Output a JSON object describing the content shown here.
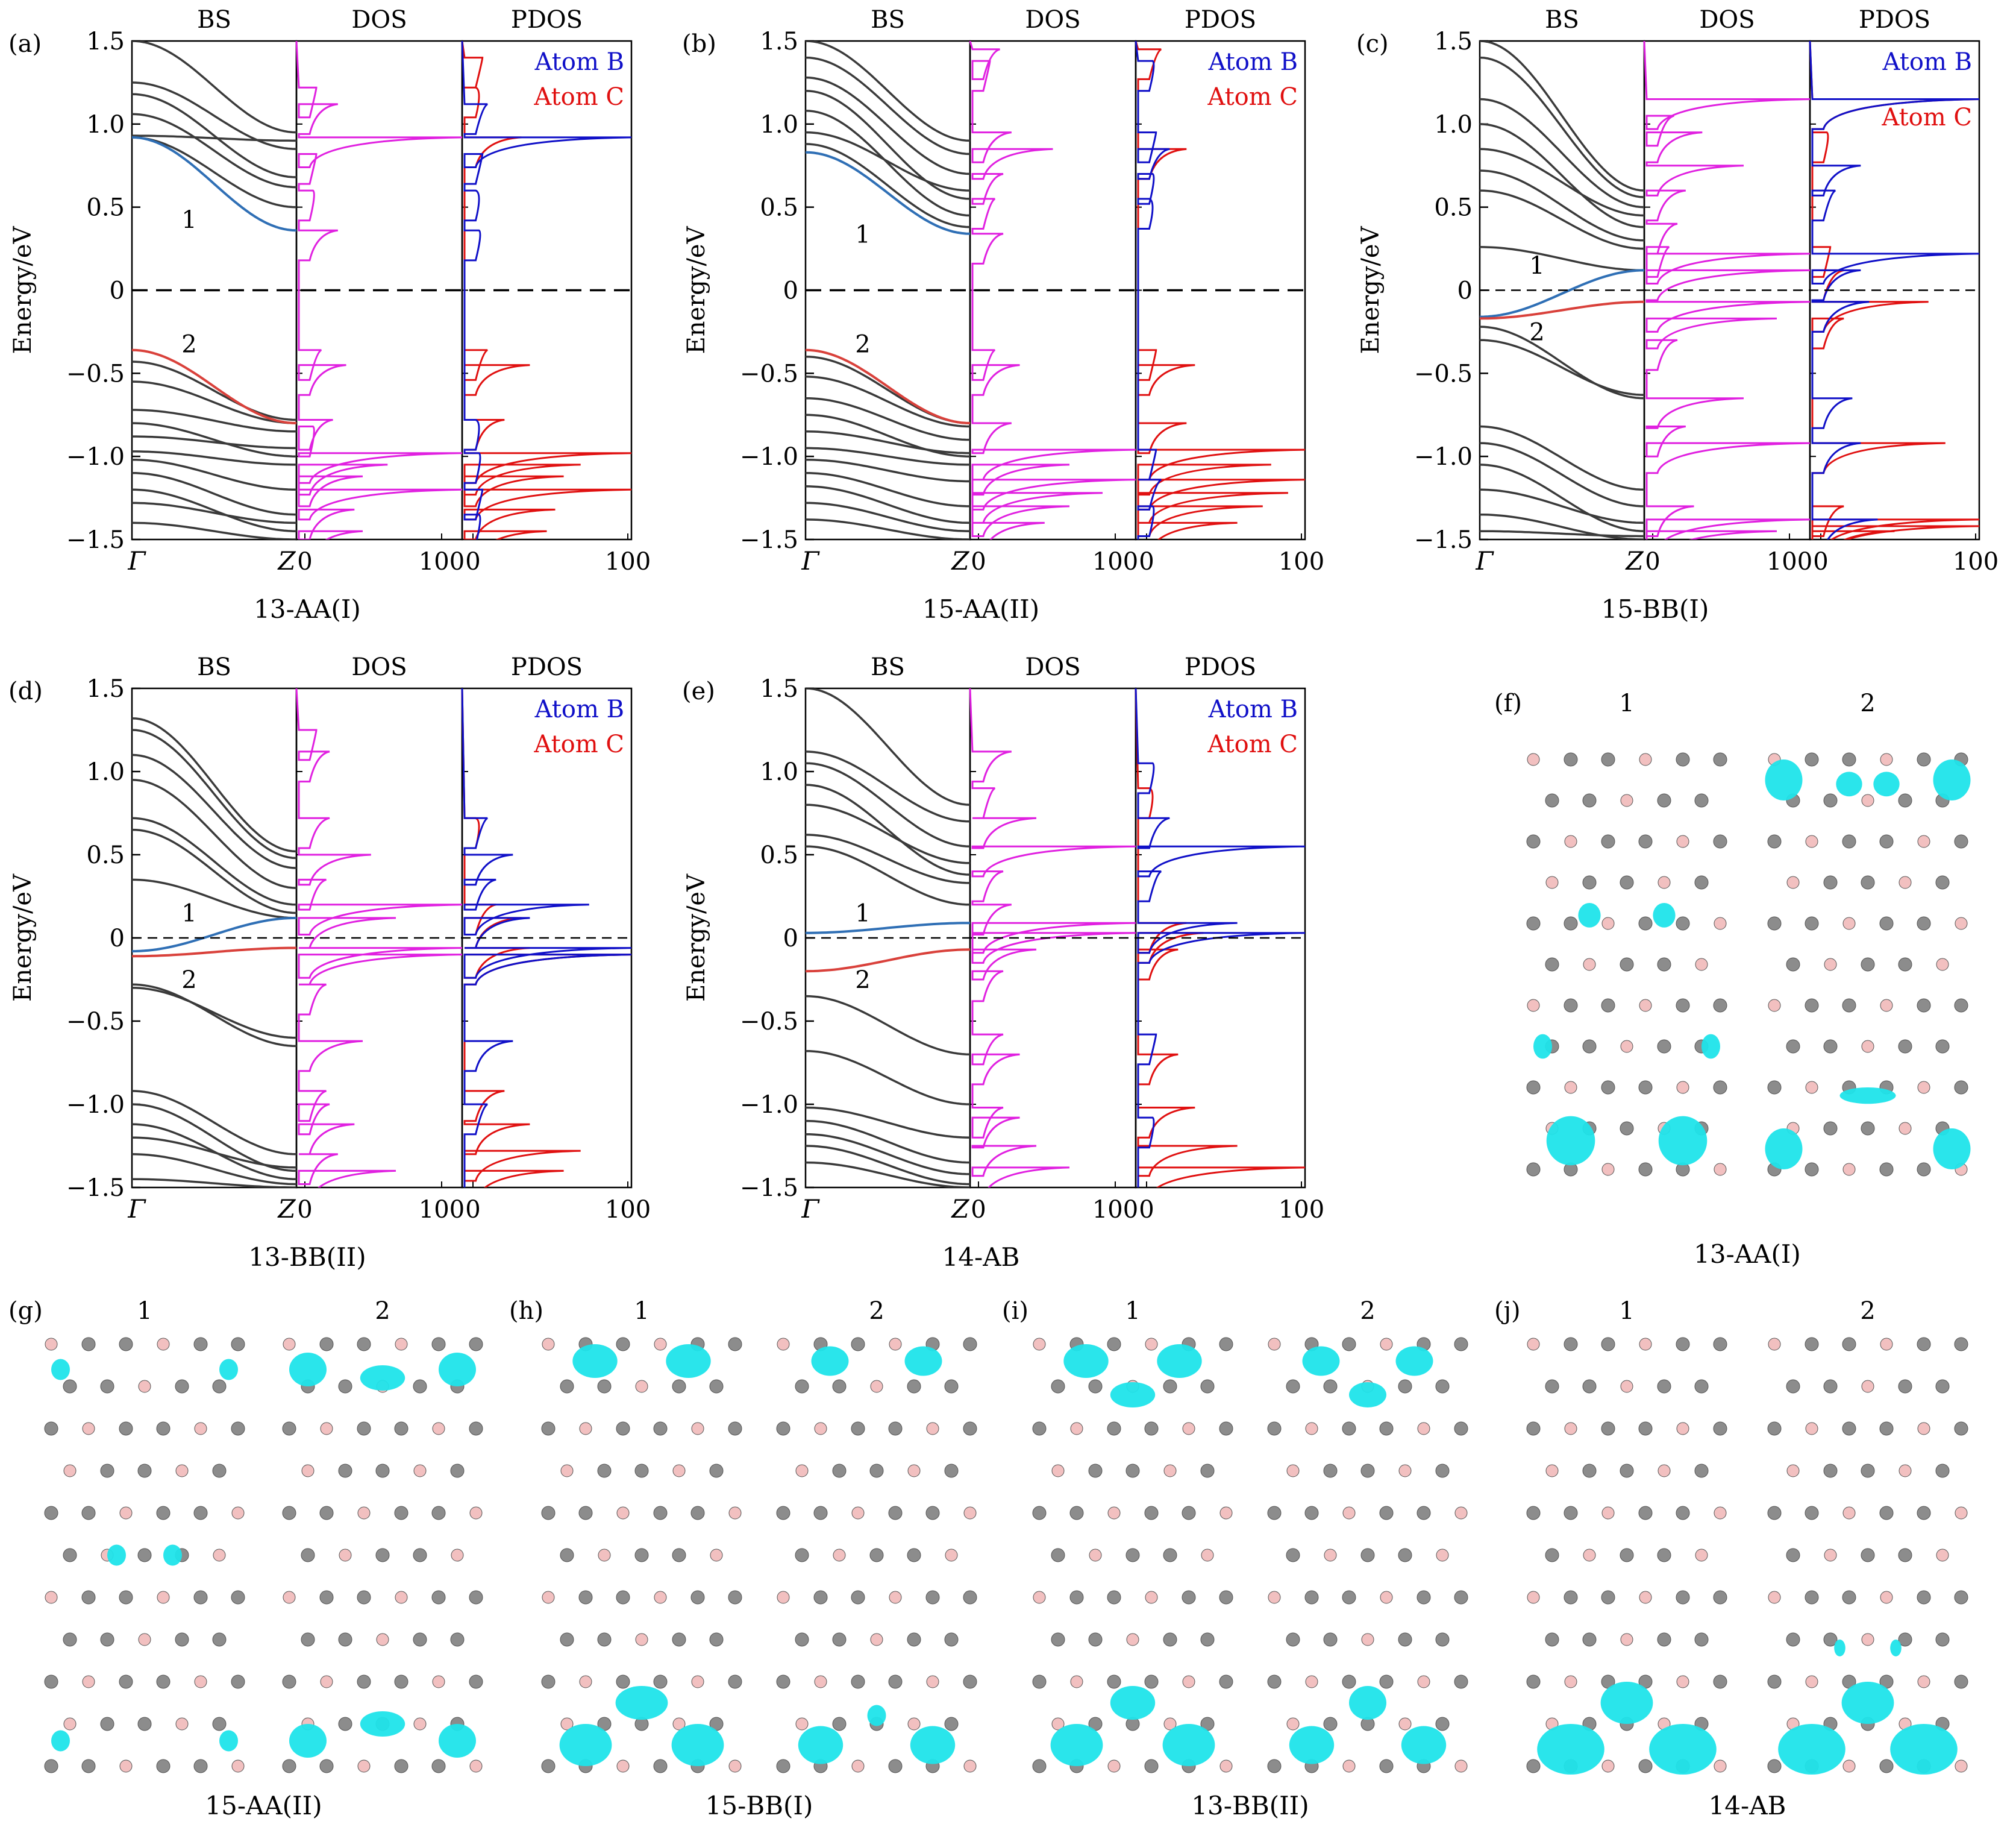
{
  "colors": {
    "band": "#3a3a3a",
    "band_1": "#2f6fb5",
    "band_2": "#d9413b",
    "dos": "#e020e0",
    "atom_b": "#1010c8",
    "atom_c": "#e01010",
    "isosurface": "#1fe4ea",
    "carbon": "#8c8c8c",
    "boron": "#f2c0c0"
  },
  "column_titles": [
    "BS",
    "DOS",
    "PDOS"
  ],
  "y_axis_label": "Energy/eV",
  "y_ticks": [
    "1.5",
    "1.0",
    "0.5",
    "0",
    "−0.5",
    "−1.0",
    "−1.5"
  ],
  "bs_x_ticks": [
    "Γ",
    "Z"
  ],
  "dos_x_ticks": [
    "0",
    "100"
  ],
  "legend": {
    "atom_b": "Atom B",
    "atom_c": "Atom C"
  },
  "band_labels": [
    "1",
    "2"
  ],
  "panels": [
    {
      "id": "(a)",
      "caption": "13-AA(I)"
    },
    {
      "id": "(b)",
      "caption": "15-AA(II)"
    },
    {
      "id": "(c)",
      "caption": "15-BB(I)"
    },
    {
      "id": "(d)",
      "caption": "13-BB(II)"
    },
    {
      "id": "(e)",
      "caption": "14-AB"
    }
  ],
  "structure_panels": [
    {
      "id": "(f)",
      "caption": "13-AA(I)"
    },
    {
      "id": "(g)",
      "caption": "15-AA(II)"
    },
    {
      "id": "(h)",
      "caption": "15-BB(I)"
    },
    {
      "id": "(i)",
      "caption": "13-BB(II)"
    },
    {
      "id": "(j)",
      "caption": "14-AB"
    }
  ],
  "chart_data": [
    {
      "panel": "(a)",
      "type": "line",
      "ylim": [
        -1.5,
        1.5
      ],
      "ylabel": "Energy/eV",
      "band1": {
        "top": 0.92,
        "bottom": 0.36
      },
      "band2": {
        "top": -0.36,
        "bottom": -0.8
      },
      "fermi_style": "dashed-heavy",
      "conduction_bands": [
        [
          1.5,
          0.95
        ],
        [
          1.25,
          0.85
        ],
        [
          1.18,
          0.68
        ],
        [
          1.06,
          0.62
        ],
        [
          0.93,
          0.9
        ],
        [
          0.92,
          0.5
        ]
      ],
      "valence_bands": [
        [
          -0.43,
          -0.78
        ],
        [
          -0.55,
          -0.8
        ],
        [
          -0.72,
          -0.85
        ],
        [
          -0.8,
          -1.0
        ],
        [
          -0.88,
          -0.95
        ],
        [
          -0.97,
          -1.05
        ],
        [
          -1.02,
          -1.2
        ],
        [
          -1.1,
          -1.35
        ],
        [
          -1.2,
          -1.45
        ],
        [
          -1.28,
          -1.4
        ],
        [
          -1.4,
          -1.5
        ]
      ],
      "dos_peaks": [
        [
          1.22,
          12
        ],
        [
          1.12,
          25
        ],
        [
          0.92,
          100
        ],
        [
          0.82,
          12
        ],
        [
          0.6,
          10
        ],
        [
          0.36,
          25
        ],
        [
          -0.36,
          15
        ],
        [
          -0.45,
          30
        ],
        [
          -0.78,
          22
        ],
        [
          -0.82,
          10
        ],
        [
          -0.98,
          100
        ],
        [
          -1.05,
          55
        ],
        [
          -1.12,
          40
        ],
        [
          -1.2,
          100
        ],
        [
          -1.32,
          35
        ],
        [
          -1.45,
          40
        ]
      ],
      "pdos_b_peaks": [
        [
          1.12,
          15
        ],
        [
          0.92,
          100
        ],
        [
          0.82,
          12
        ],
        [
          0.6,
          8
        ],
        [
          0.36,
          10
        ],
        [
          -0.78,
          8
        ],
        [
          -0.98,
          10
        ],
        [
          -1.2,
          12
        ],
        [
          -1.35,
          10
        ]
      ],
      "pdos_c_peaks": [
        [
          1.4,
          12
        ],
        [
          1.22,
          8
        ],
        [
          0.92,
          35
        ],
        [
          -0.36,
          15
        ],
        [
          -0.45,
          40
        ],
        [
          -0.78,
          25
        ],
        [
          -0.98,
          100
        ],
        [
          -1.05,
          70
        ],
        [
          -1.12,
          60
        ],
        [
          -1.2,
          100
        ],
        [
          -1.32,
          55
        ],
        [
          -1.45,
          50
        ]
      ]
    },
    {
      "panel": "(b)",
      "type": "line",
      "ylim": [
        -1.5,
        1.5
      ],
      "ylabel": "Energy/eV",
      "band1": {
        "top": 0.83,
        "bottom": 0.34
      },
      "band2": {
        "top": -0.36,
        "bottom": -0.8
      },
      "fermi_style": "dashed-heavy",
      "conduction_bands": [
        [
          1.5,
          0.9
        ],
        [
          1.4,
          0.82
        ],
        [
          1.28,
          0.7
        ],
        [
          1.2,
          0.55
        ],
        [
          1.08,
          0.45
        ],
        [
          0.95,
          0.6
        ],
        [
          0.88,
          0.38
        ]
      ],
      "valence_bands": [
        [
          -0.4,
          -0.8
        ],
        [
          -0.52,
          -0.82
        ],
        [
          -0.65,
          -0.9
        ],
        [
          -0.75,
          -1.0
        ],
        [
          -0.85,
          -0.98
        ],
        [
          -0.95,
          -1.05
        ],
        [
          -1.02,
          -1.15
        ],
        [
          -1.1,
          -1.3
        ],
        [
          -1.18,
          -1.4
        ],
        [
          -1.28,
          -1.45
        ],
        [
          -1.38,
          -1.5
        ]
      ],
      "dos_peaks": [
        [
          1.45,
          18
        ],
        [
          1.38,
          12
        ],
        [
          0.95,
          25
        ],
        [
          0.85,
          50
        ],
        [
          0.7,
          20
        ],
        [
          0.55,
          15
        ],
        [
          0.34,
          20
        ],
        [
          -0.36,
          15
        ],
        [
          -0.45,
          30
        ],
        [
          -0.8,
          25
        ],
        [
          -0.96,
          100
        ],
        [
          -1.05,
          60
        ],
        [
          -1.14,
          100
        ],
        [
          -1.22,
          80
        ],
        [
          -1.3,
          60
        ],
        [
          -1.4,
          45
        ]
      ],
      "pdos_b_peaks": [
        [
          1.38,
          10
        ],
        [
          0.95,
          12
        ],
        [
          0.85,
          20
        ],
        [
          0.7,
          10
        ],
        [
          0.55,
          8
        ],
        [
          -0.96,
          12
        ],
        [
          -1.14,
          15
        ],
        [
          -1.3,
          10
        ]
      ],
      "pdos_c_peaks": [
        [
          1.45,
          15
        ],
        [
          0.85,
          30
        ],
        [
          -0.36,
          12
        ],
        [
          -0.45,
          35
        ],
        [
          -0.8,
          30
        ],
        [
          -0.96,
          100
        ],
        [
          -1.05,
          80
        ],
        [
          -1.14,
          100
        ],
        [
          -1.22,
          90
        ],
        [
          -1.3,
          75
        ],
        [
          -1.4,
          60
        ]
      ]
    },
    {
      "panel": "(c)",
      "type": "line",
      "ylim": [
        -1.5,
        1.5
      ],
      "ylabel": "Energy/eV",
      "band1": {
        "top": -0.16,
        "bottom": 0.12
      },
      "band2": {
        "top": -0.17,
        "bottom": -0.07
      },
      "fermi_style": "dashed-light",
      "conduction_bands": [
        [
          1.5,
          0.6
        ],
        [
          1.4,
          0.56
        ],
        [
          1.15,
          0.5
        ],
        [
          1.0,
          0.38
        ],
        [
          0.85,
          0.45
        ],
        [
          0.72,
          0.3
        ],
        [
          0.6,
          0.25
        ],
        [
          0.26,
          0.12
        ]
      ],
      "valence_bands": [
        [
          -0.22,
          -0.65
        ],
        [
          -0.3,
          -0.63
        ],
        [
          -0.82,
          -1.2
        ],
        [
          -0.92,
          -1.3
        ],
        [
          -1.05,
          -1.45
        ],
        [
          -1.2,
          -1.4
        ],
        [
          -1.35,
          -1.5
        ],
        [
          -1.45,
          -1.48
        ]
      ],
      "dos_peaks": [
        [
          1.15,
          100
        ],
        [
          1.05,
          18
        ],
        [
          0.95,
          35
        ],
        [
          0.75,
          60
        ],
        [
          0.6,
          25
        ],
        [
          0.4,
          20
        ],
        [
          0.26,
          15
        ],
        [
          0.22,
          100
        ],
        [
          0.12,
          100
        ],
        [
          -0.07,
          100
        ],
        [
          -0.17,
          80
        ],
        [
          -0.3,
          20
        ],
        [
          -0.65,
          60
        ],
        [
          -0.82,
          25
        ],
        [
          -0.92,
          100
        ],
        [
          -1.3,
          30
        ],
        [
          -1.38,
          100
        ],
        [
          -1.45,
          80
        ]
      ],
      "pdos_b_peaks": [
        [
          1.15,
          100
        ],
        [
          0.75,
          30
        ],
        [
          0.6,
          15
        ],
        [
          0.22,
          100
        ],
        [
          0.12,
          30
        ],
        [
          -0.07,
          35
        ],
        [
          -0.65,
          25
        ],
        [
          -0.92,
          30
        ],
        [
          -1.38,
          40
        ]
      ],
      "pdos_c_peaks": [
        [
          1.15,
          100
        ],
        [
          0.95,
          10
        ],
        [
          0.26,
          12
        ],
        [
          0.12,
          20
        ],
        [
          -0.07,
          70
        ],
        [
          -0.17,
          20
        ],
        [
          -0.92,
          80
        ],
        [
          -1.3,
          20
        ],
        [
          -1.38,
          100
        ],
        [
          -1.42,
          100
        ],
        [
          -1.45,
          50
        ]
      ]
    },
    {
      "panel": "(d)",
      "type": "line",
      "ylim": [
        -1.5,
        1.5
      ],
      "ylabel": "Energy/eV",
      "band1": {
        "top": -0.08,
        "bottom": 0.12
      },
      "band2": {
        "top": -0.11,
        "bottom": -0.06
      },
      "fermi_style": "dashed-light",
      "conduction_bands": [
        [
          1.32,
          0.52
        ],
        [
          1.25,
          0.48
        ],
        [
          1.1,
          0.42
        ],
        [
          0.95,
          0.3
        ],
        [
          0.72,
          0.2
        ],
        [
          0.65,
          0.15
        ],
        [
          0.35,
          0.12
        ]
      ],
      "valence_bands": [
        [
          -0.28,
          -0.65
        ],
        [
          -0.3,
          -0.6
        ],
        [
          -0.92,
          -1.3
        ],
        [
          -1.0,
          -1.4
        ],
        [
          -1.12,
          -1.45
        ],
        [
          -1.2,
          -1.38
        ],
        [
          -1.3,
          -1.48
        ],
        [
          -1.45,
          -1.5
        ]
      ],
      "dos_peaks": [
        [
          1.25,
          12
        ],
        [
          1.12,
          20
        ],
        [
          0.72,
          20
        ],
        [
          0.5,
          45
        ],
        [
          0.35,
          18
        ],
        [
          0.2,
          100
        ],
        [
          0.12,
          60
        ],
        [
          -0.06,
          100
        ],
        [
          -0.1,
          100
        ],
        [
          -0.28,
          18
        ],
        [
          -0.62,
          40
        ],
        [
          -0.92,
          18
        ],
        [
          -1.0,
          20
        ],
        [
          -1.12,
          35
        ],
        [
          -1.3,
          25
        ],
        [
          -1.4,
          60
        ]
      ],
      "pdos_b_peaks": [
        [
          0.72,
          15
        ],
        [
          0.5,
          30
        ],
        [
          0.35,
          20
        ],
        [
          0.2,
          75
        ],
        [
          0.12,
          40
        ],
        [
          -0.06,
          100
        ],
        [
          -0.1,
          100
        ],
        [
          -0.62,
          30
        ],
        [
          -1.0,
          15
        ]
      ],
      "pdos_c_peaks": [
        [
          0.72,
          8
        ],
        [
          0.2,
          20
        ],
        [
          0.12,
          35
        ],
        [
          -0.06,
          40
        ],
        [
          -0.1,
          100
        ],
        [
          -0.92,
          25
        ],
        [
          -1.12,
          40
        ],
        [
          -1.28,
          70
        ],
        [
          -1.4,
          60
        ]
      ]
    },
    {
      "panel": "(e)",
      "type": "line",
      "ylim": [
        -1.5,
        1.5
      ],
      "ylabel": "Energy/eV",
      "band1": {
        "top": 0.03,
        "bottom": 0.09
      },
      "band2": {
        "top": -0.2,
        "bottom": -0.07
      },
      "fermi_style": "dashed-light",
      "conduction_bands": [
        [
          1.5,
          0.8
        ],
        [
          1.12,
          0.7
        ],
        [
          1.05,
          0.55
        ],
        [
          0.92,
          0.38
        ],
        [
          0.8,
          0.45
        ],
        [
          0.62,
          0.33
        ],
        [
          0.55,
          0.2
        ]
      ],
      "valence_bands": [
        [
          -0.35,
          -0.7
        ],
        [
          -0.68,
          -1.0
        ],
        [
          -1.02,
          -1.2
        ],
        [
          -1.1,
          -1.35
        ],
        [
          -1.18,
          -1.42
        ],
        [
          -1.25,
          -1.48
        ],
        [
          -1.35,
          -1.5
        ]
      ],
      "dos_peaks": [
        [
          1.12,
          25
        ],
        [
          0.9,
          15
        ],
        [
          0.72,
          40
        ],
        [
          0.55,
          100
        ],
        [
          0.4,
          20
        ],
        [
          0.2,
          25
        ],
        [
          0.09,
          100
        ],
        [
          0.03,
          100
        ],
        [
          -0.07,
          40
        ],
        [
          -0.2,
          20
        ],
        [
          -0.58,
          20
        ],
        [
          -0.7,
          30
        ],
        [
          -1.02,
          20
        ],
        [
          -1.08,
          30
        ],
        [
          -1.25,
          40
        ],
        [
          -1.38,
          60
        ]
      ],
      "pdos_b_peaks": [
        [
          1.05,
          10
        ],
        [
          0.72,
          20
        ],
        [
          0.55,
          100
        ],
        [
          0.4,
          15
        ],
        [
          0.09,
          60
        ],
        [
          0.03,
          100
        ],
        [
          -0.58,
          12
        ],
        [
          -1.08,
          10
        ]
      ],
      "pdos_c_peaks": [
        [
          0.9,
          8
        ],
        [
          0.09,
          30
        ],
        [
          0.03,
          40
        ],
        [
          -0.07,
          25
        ],
        [
          -0.7,
          25
        ],
        [
          -1.02,
          35
        ],
        [
          -1.25,
          60
        ],
        [
          -1.38,
          100
        ]
      ]
    }
  ]
}
